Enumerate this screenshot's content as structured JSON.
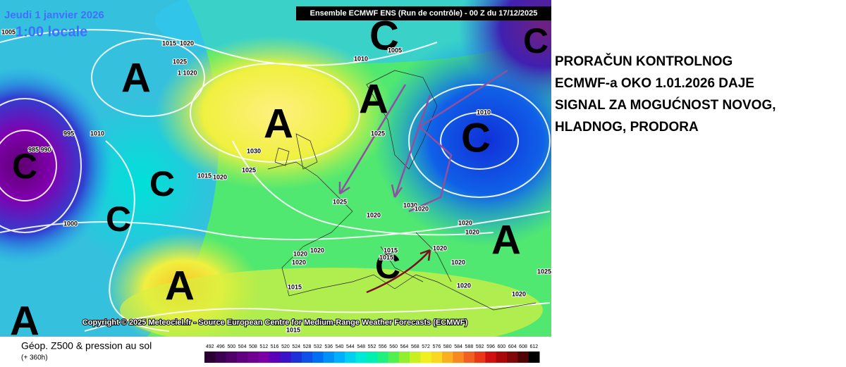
{
  "map": {
    "header": "Ensemble ECMWF ENS  (Run de contrôle)  -  00 Z du 17/12/2025",
    "date": "Jeudi 1 janvier 2026",
    "time": "1:00 locale",
    "copyright": "Copyright © 2025 Meteociel.fr - Source European Centre for Medium-Range Weather Forecasts (ECMWF)",
    "systems": [
      "C",
      "C",
      "A",
      "A",
      "A",
      "C",
      "C",
      "C",
      "C",
      "A",
      "C",
      "A",
      "A"
    ],
    "isobar_labels": [
      "1005",
      "1015",
      "1020",
      "1025",
      "1 1020",
      "1010",
      "1005",
      "995",
      "1010",
      "985 990",
      "1030",
      "1025",
      "1015",
      "1020",
      "1025",
      "1010",
      "1000",
      "1025",
      "1030",
      "1020",
      "1020",
      "1020",
      "1020",
      "1020",
      "1020",
      "1020",
      "1020",
      "1015",
      "1015",
      "1020",
      "1020",
      "1015",
      "1020",
      "1025",
      "1015"
    ]
  },
  "legend": {
    "title": "Géop. Z500 & pression au sol",
    "lead_time": "(+ 360h)",
    "scale_labels": [
      "492",
      "496",
      "500",
      "504",
      "508",
      "512",
      "516",
      "520",
      "524",
      "528",
      "532",
      "536",
      "540",
      "544",
      "548",
      "552",
      "556",
      "560",
      "564",
      "568",
      "572",
      "576",
      "580",
      "584",
      "588",
      "592",
      "596",
      "600",
      "604",
      "608",
      "612"
    ],
    "scale_colors": [
      "#2a0033",
      "#3c0050",
      "#4e0068",
      "#600080",
      "#700090",
      "#7a00a6",
      "#5a00b8",
      "#3a10c8",
      "#2030d8",
      "#1050e8",
      "#0070f0",
      "#0090f8",
      "#00b0ff",
      "#00d0f0",
      "#00e8d8",
      "#00f0b0",
      "#20f080",
      "#50f050",
      "#90f030",
      "#c8f020",
      "#f0f020",
      "#f8d820",
      "#f8b020",
      "#f88820",
      "#f06020",
      "#e83818",
      "#d01010",
      "#a80808",
      "#800808",
      "#500404",
      "#000000"
    ]
  },
  "comment": {
    "lines": [
      "PRORAČUN KONTROLNOG",
      "ECMWF-a OKO 1.01.2026 DAJE",
      "SIGNAL ZA MOGUĆNOST NOVOG,",
      "HLADNOG, PRODORA"
    ]
  }
}
